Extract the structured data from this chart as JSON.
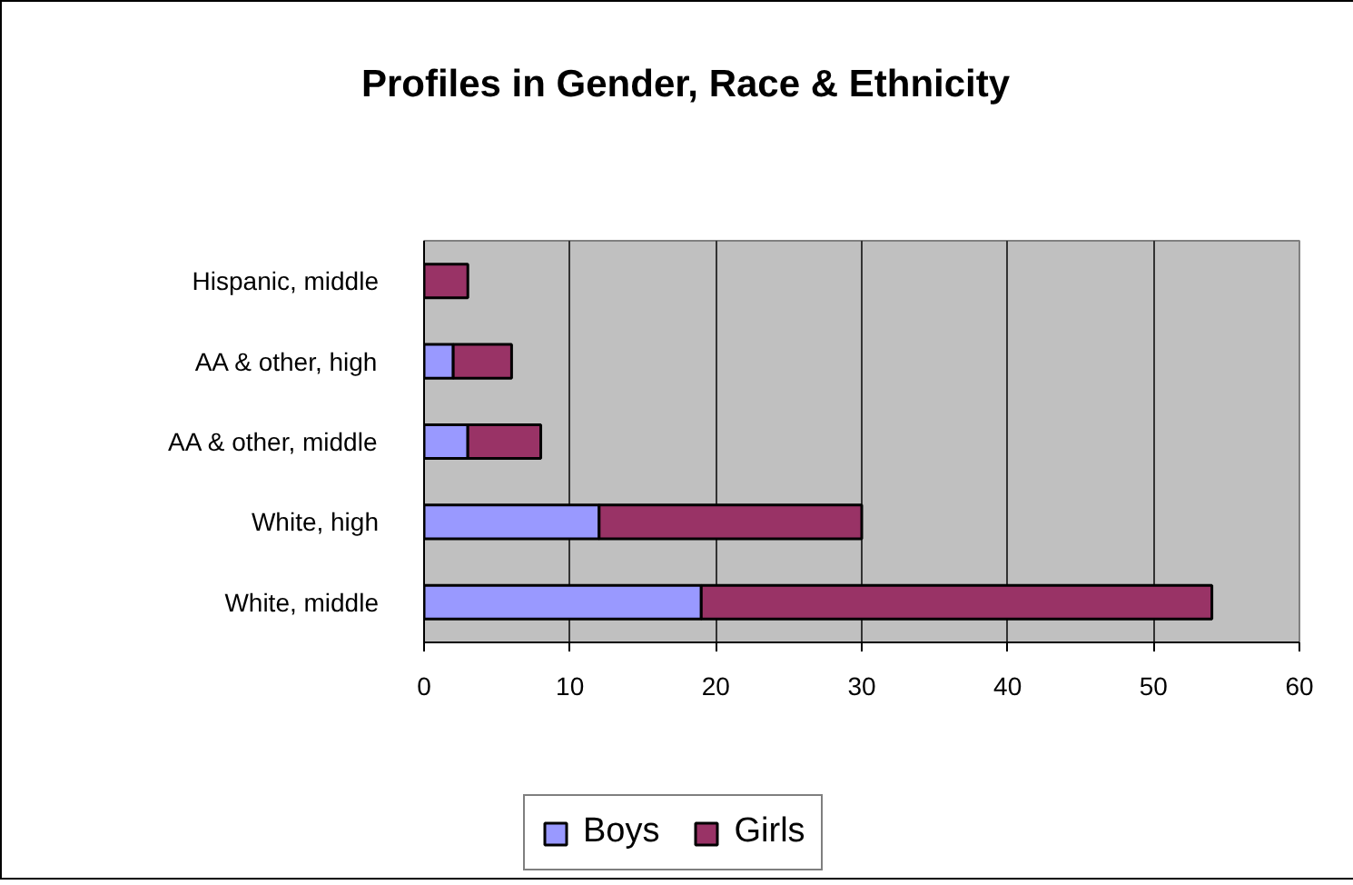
{
  "chart_data": {
    "type": "bar",
    "title": "Profiles in Gender, Race & Ethnicity",
    "orientation": "horizontal",
    "stacked": true,
    "categories": [
      "Hispanic, middle",
      "AA & other, high",
      "AA & other, middle",
      "White, high",
      "White, middle"
    ],
    "series": [
      {
        "name": "Boys",
        "color": "#9999ff",
        "values": [
          0,
          2,
          3,
          12,
          19
        ]
      },
      {
        "name": "Girls",
        "color": "#993366",
        "values": [
          3,
          4,
          5,
          18,
          35
        ]
      }
    ],
    "xlim": [
      0,
      60
    ],
    "xticks": [
      0,
      10,
      20,
      30,
      40,
      50,
      60
    ],
    "grid": "x",
    "legend": "bottom"
  }
}
